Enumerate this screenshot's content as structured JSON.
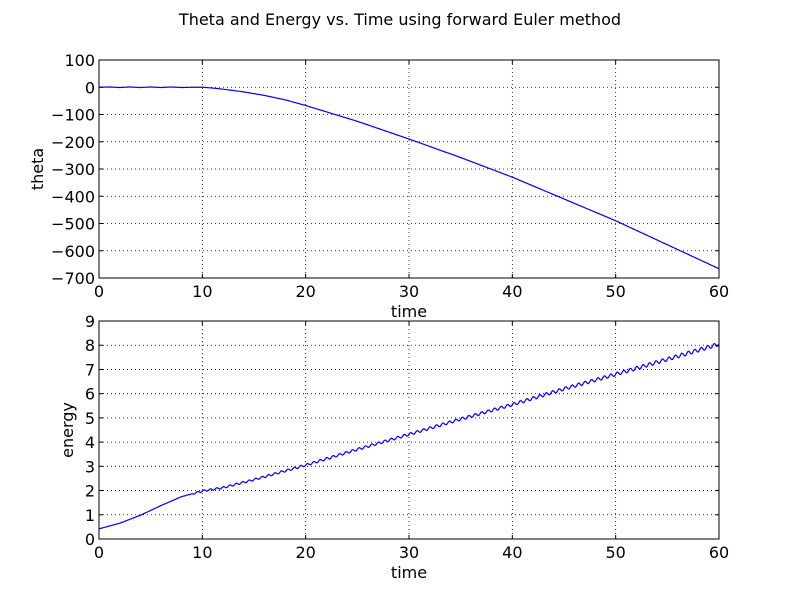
{
  "figure": {
    "title": "Theta and Energy vs. Time using forward Euler method"
  },
  "chart_data": [
    {
      "type": "line",
      "xlabel": "time",
      "ylabel": "theta",
      "xlim": [
        0,
        60
      ],
      "ylim": [
        -700,
        100
      ],
      "x_ticks": [
        0,
        10,
        20,
        30,
        40,
        50,
        60
      ],
      "y_ticks": [
        100,
        0,
        -100,
        -200,
        -300,
        -400,
        -500,
        -600,
        -700
      ],
      "x_tick_labels": [
        "0",
        "10",
        "20",
        "30",
        "40",
        "50",
        "60"
      ],
      "y_tick_labels": [
        "100",
        "0",
        "−100",
        "−200",
        "−300",
        "−400",
        "−500",
        "−600",
        "−700"
      ],
      "grid": true,
      "color": "#0000ff",
      "series": [
        {
          "x": [
            0,
            1,
            2,
            3,
            4,
            5,
            6,
            7,
            8,
            9,
            10,
            11,
            12,
            14,
            16,
            18,
            20,
            25,
            30,
            35,
            40,
            45,
            50,
            55,
            60
          ],
          "y": [
            0,
            1,
            -1,
            1,
            -1,
            1,
            -1,
            1,
            -1,
            0,
            0,
            -3,
            -7,
            -17,
            -30,
            -46,
            -67,
            -125,
            -190,
            -258,
            -330,
            -410,
            -490,
            -578,
            -666
          ]
        }
      ]
    },
    {
      "type": "line",
      "xlabel": "time",
      "ylabel": "energy",
      "xlim": [
        0,
        60
      ],
      "ylim": [
        0,
        9
      ],
      "x_ticks": [
        0,
        10,
        20,
        30,
        40,
        50,
        60
      ],
      "y_ticks": [
        9,
        8,
        7,
        6,
        5,
        4,
        3,
        2,
        1,
        0
      ],
      "x_tick_labels": [
        "0",
        "10",
        "20",
        "30",
        "40",
        "50",
        "60"
      ],
      "y_tick_labels": [
        "9",
        "8",
        "7",
        "6",
        "5",
        "4",
        "3",
        "2",
        "1",
        "0"
      ],
      "grid": true,
      "color": "#0000ff",
      "series": [
        {
          "x": [
            0,
            2,
            4,
            6,
            8,
            10,
            12,
            15,
            20,
            25,
            30,
            35,
            40,
            45,
            50,
            55,
            60
          ],
          "y": [
            0.42,
            0.65,
            0.98,
            1.38,
            1.75,
            1.98,
            2.12,
            2.45,
            3.05,
            3.7,
            4.32,
            4.95,
            5.55,
            6.2,
            6.8,
            7.42,
            8.05
          ]
        }
      ]
    }
  ]
}
